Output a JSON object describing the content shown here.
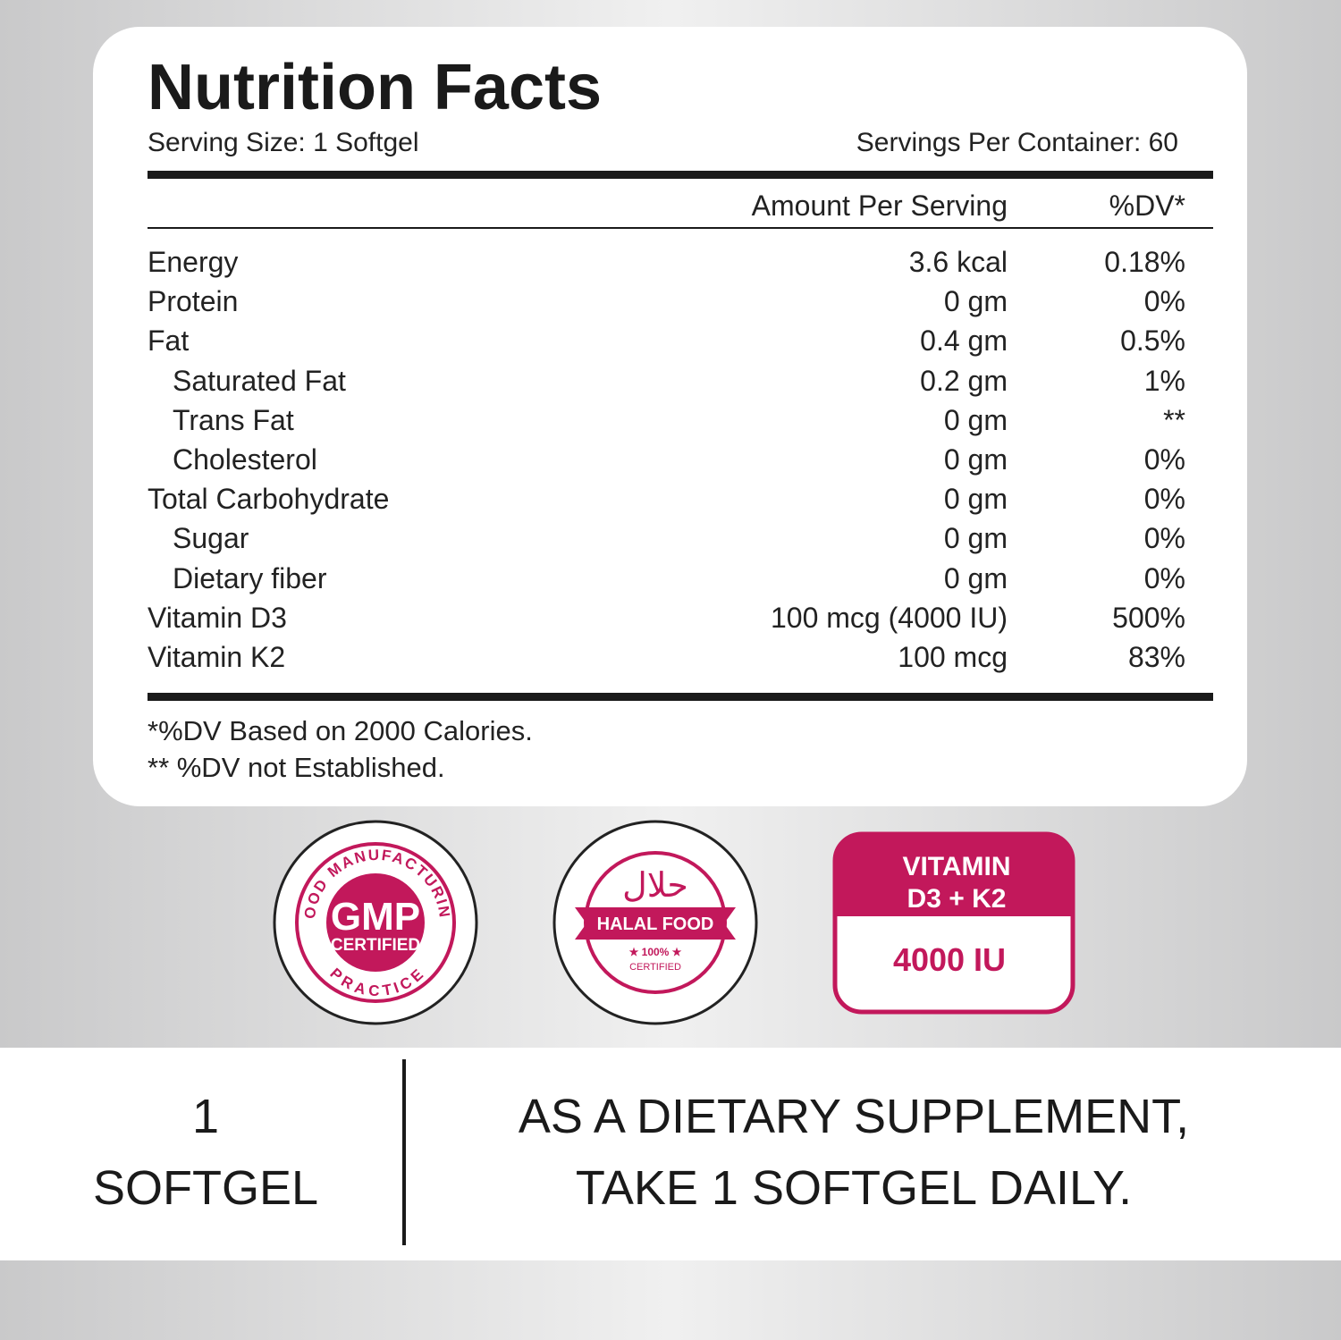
{
  "header": {
    "title": "Nutrition Facts",
    "serving_size": "Serving Size: 1 Softgel",
    "servings_per_container": "Servings Per Container: 60"
  },
  "table": {
    "columns": [
      "Amount Per Serving",
      "%DV*"
    ],
    "rows": [
      {
        "name": "Energy",
        "amount": "3.6 kcal",
        "dv": "0.18%"
      },
      {
        "name": "Protein",
        "amount": "0 gm",
        "dv": "0%"
      },
      {
        "name": "Fat",
        "amount": "0.4 gm",
        "dv": "0.5%",
        "sub": [
          {
            "name": "Saturated Fat",
            "amount": "0.2 gm",
            "dv": "1%"
          },
          {
            "name": "Trans Fat",
            "amount": "0 gm",
            "dv": "**"
          },
          {
            "name": "Cholesterol",
            "amount": "0 gm",
            "dv": "0%"
          }
        ]
      },
      {
        "name": "Total Carbohydrate",
        "amount": "0 gm",
        "dv": "0%",
        "sub": [
          {
            "name": "Sugar",
            "amount": "0 gm",
            "dv": "0%"
          },
          {
            "name": "Dietary fiber",
            "amount": "0 gm",
            "dv": "0%"
          }
        ]
      },
      {
        "name": "Vitamin D3",
        "amount": "100 mcg (4000 IU)",
        "dv": "500%"
      },
      {
        "name": "Vitamin K2",
        "amount": "100 mcg",
        "dv": "83%"
      }
    ]
  },
  "footnotes": [
    "*%DV Based on 2000 Calories.",
    "** %DV not Established."
  ],
  "badges": {
    "gmp": {
      "arc_top": "GOOD MANUFACTURING",
      "arc_bottom": "PRACTICE",
      "main": "GMP",
      "sub": "CERTIFIED"
    },
    "halal": {
      "arabic": "حلال",
      "banner": "HALAL FOOD",
      "percent": "★ 100% ★",
      "sub": "CERTIFIED"
    },
    "vitamin": {
      "line1": "VITAMIN",
      "line2": "D3 + K2",
      "strength": "4000 IU"
    }
  },
  "directions": {
    "dose_number": "1",
    "dose_unit": "SOFTGEL",
    "line1": "AS A DIETARY SUPPLEMENT,",
    "line2": "TAKE 1 SOFTGEL DAILY."
  }
}
